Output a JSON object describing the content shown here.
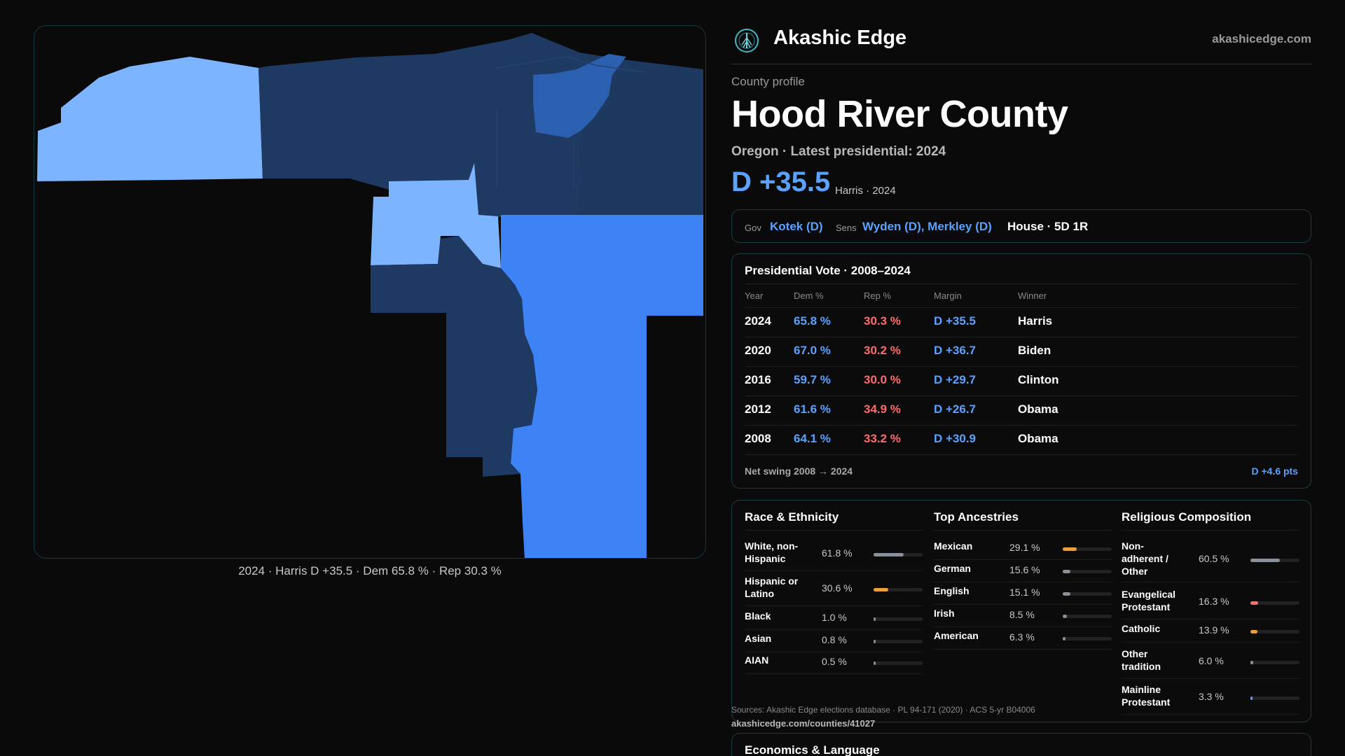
{
  "header": {
    "brand": "Akashic Edge",
    "domain": "akashicedge.com",
    "logo_icon": "tree-icon"
  },
  "profile": {
    "label": "County profile",
    "title": "Hood River County",
    "subtitle": "Oregon · Latest presidential: 2024",
    "margin": "D +35.5",
    "margin_sub": "Harris · 2024"
  },
  "officials": {
    "gov_label": "Gov",
    "gov": "Kotek (D)",
    "sens_label": "Sens",
    "sens": "Wyden (D), Merkley (D)",
    "house": "House · 5D 1R"
  },
  "map": {
    "caption": "2024 · Harris D +35.5 · Dem 65.8 % · Rep 30.3 %"
  },
  "presidential": {
    "title": "Presidential Vote · 2008–2024",
    "headers": [
      "Year",
      "Dem %",
      "Rep %",
      "Margin",
      "Winner"
    ],
    "rows": [
      {
        "year": "2024",
        "dem": "65.8 %",
        "rep": "30.3 %",
        "margin": "D +35.5",
        "winner": "Harris"
      },
      {
        "year": "2020",
        "dem": "67.0 %",
        "rep": "30.2 %",
        "margin": "D +36.7",
        "winner": "Biden"
      },
      {
        "year": "2016",
        "dem": "59.7 %",
        "rep": "30.0 %",
        "margin": "D +29.7",
        "winner": "Clinton"
      },
      {
        "year": "2012",
        "dem": "61.6 %",
        "rep": "34.9 %",
        "margin": "D +26.7",
        "winner": "Obama"
      },
      {
        "year": "2008",
        "dem": "64.1 %",
        "rep": "33.2 %",
        "margin": "D +30.9",
        "winner": "Obama"
      }
    ],
    "swing_label": "Net swing 2008 → 2024",
    "swing_value": "D +4.6 pts"
  },
  "race": {
    "title": "Race & Ethnicity",
    "rows": [
      {
        "label": "White, non-Hispanic",
        "pct": "61.8 %",
        "value": 61.8,
        "color": "#8a8f99"
      },
      {
        "label": "Hispanic or Latino",
        "pct": "30.6 %",
        "value": 30.6,
        "color": "#e9a23b"
      },
      {
        "label": "Black",
        "pct": "1.0 %",
        "value": 1.0,
        "color": "#8a8f99"
      },
      {
        "label": "Asian",
        "pct": "0.8 %",
        "value": 0.8,
        "color": "#8a8f99"
      },
      {
        "label": "AIAN",
        "pct": "0.5 %",
        "value": 0.5,
        "color": "#8a8f99"
      }
    ]
  },
  "ancestry": {
    "title": "Top Ancestries",
    "rows": [
      {
        "label": "Mexican",
        "pct": "29.1 %",
        "value": 29.1,
        "color": "#e9a23b"
      },
      {
        "label": "German",
        "pct": "15.6 %",
        "value": 15.6,
        "color": "#8a8f99"
      },
      {
        "label": "English",
        "pct": "15.1 %",
        "value": 15.1,
        "color": "#8a8f99"
      },
      {
        "label": "Irish",
        "pct": "8.5 %",
        "value": 8.5,
        "color": "#8a8f99"
      },
      {
        "label": "American",
        "pct": "6.3 %",
        "value": 6.3,
        "color": "#8a8f99"
      }
    ]
  },
  "religion": {
    "title": "Religious Composition",
    "rows": [
      {
        "label": "Non-adherent / Other",
        "pct": "60.5 %",
        "value": 60.5,
        "color": "#8a8f99"
      },
      {
        "label": "Evangelical Protestant",
        "pct": "16.3 %",
        "value": 16.3,
        "color": "#ff6b6b"
      },
      {
        "label": "Catholic",
        "pct": "13.9 %",
        "value": 13.9,
        "color": "#e9a23b"
      },
      {
        "label": "Other tradition",
        "pct": "6.0 %",
        "value": 6.0,
        "color": "#8a8f99"
      },
      {
        "label": "Mainline Protestant",
        "pct": "3.3 %",
        "value": 3.3,
        "color": "#5aa2ff"
      }
    ]
  },
  "footer": {
    "sources": "Sources: Akashic Edge elections database · PL 94-171 (2020) · ACS 5-yr B04006",
    "url": "akashicedge.com/counties/41027",
    "next_title": "Economics & Language"
  }
}
